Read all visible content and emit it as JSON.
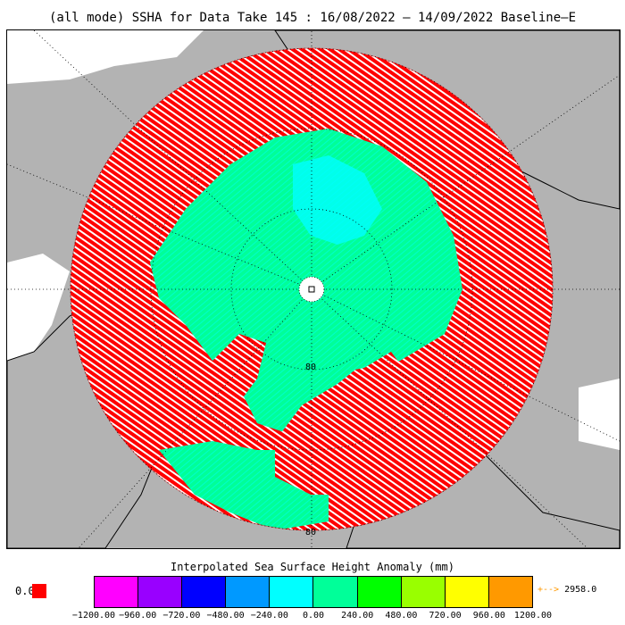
{
  "title": "(all mode) SSHA for Data Take 145 : 16/08/2022 — 14/09/2022 Baseline—E",
  "map": {
    "projection": "north polar stereographic",
    "latitude_labels": [
      "80",
      "80"
    ],
    "center_marker": "north-pole-marker",
    "land_color": "#b3b3b3",
    "ocean_color": "#ffffff"
  },
  "legend": {
    "title": "Interpolated Sea Surface Height Anomaly (mm)",
    "zero_label": "0.0",
    "zero_color": "#ff0000",
    "max_arrow": "+-->",
    "max_value": "2958.0",
    "max_arrow_color": "#ff9900",
    "colors": [
      "#ff00ff",
      "#9900ff",
      "#0000ff",
      "#0099ff",
      "#00ffff",
      "#00ff99",
      "#00ff00",
      "#99ff00",
      "#ffff00",
      "#ff9900"
    ],
    "ticks": [
      "−1200.00",
      "−960.00",
      "−720.00",
      "−480.00",
      "−240.00",
      "0.00",
      "240.00",
      "480.00",
      "720.00",
      "960.00",
      "1200.00"
    ]
  }
}
